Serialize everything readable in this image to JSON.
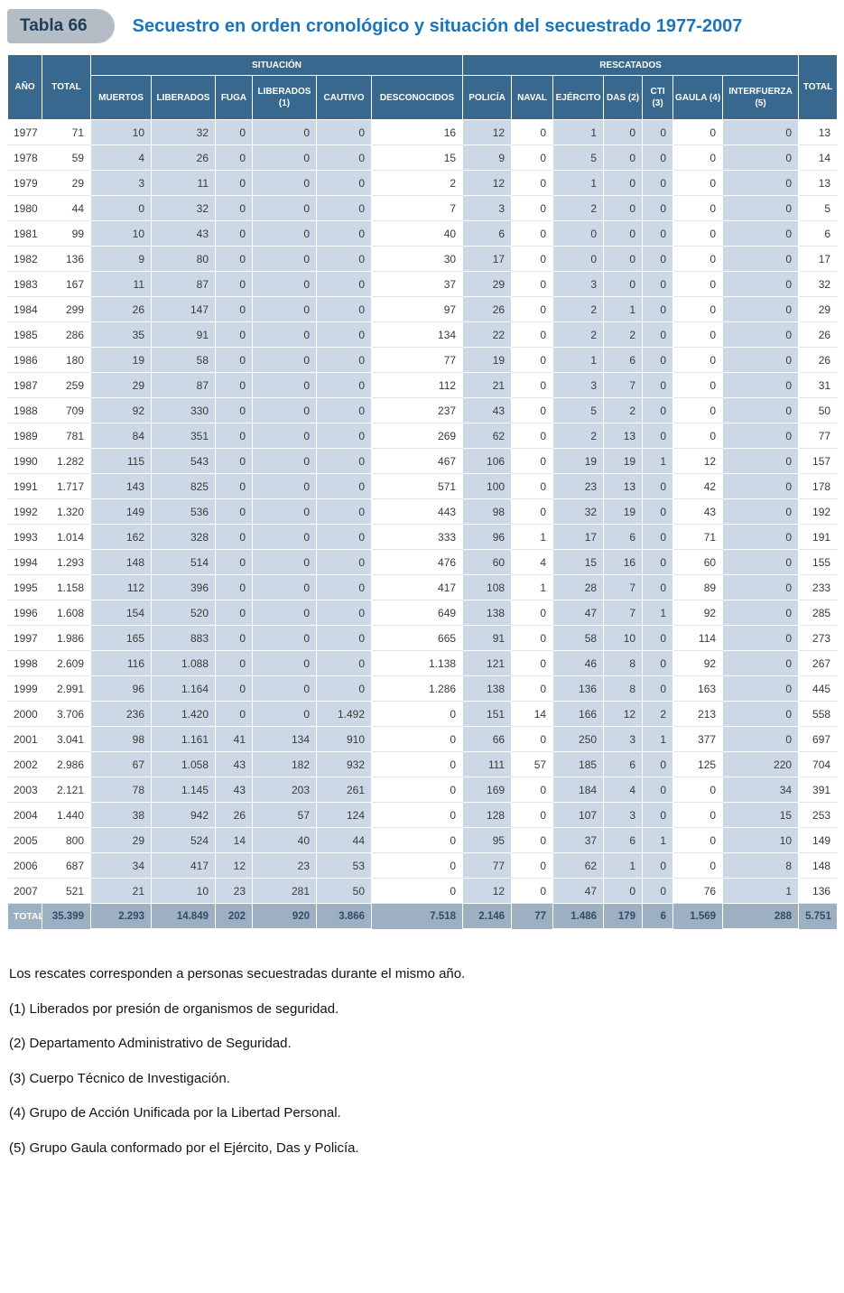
{
  "header": {
    "badge": "Tabla 66",
    "title": "Secuestro en orden cronológico y situación del secuestrado 1977-2007"
  },
  "table": {
    "group_headers": [
      "SITUACIÓN",
      "RESCATADOS"
    ],
    "columns": [
      "AÑO",
      "TOTAL",
      "MUERTOS",
      "LIBERADOS",
      "FUGA",
      "LIBERADOS (1)",
      "CAUTIVO",
      "DESCONOCIDOS",
      "POLICÍA",
      "NAVAL",
      "EJÉRCITO",
      "DAS (2)",
      "CTI (3)",
      "GAULA (4)",
      "INTERFUERZA (5)",
      "TOTAL"
    ],
    "rows": [
      [
        "1977",
        "71",
        "10",
        "32",
        "0",
        "0",
        "0",
        "16",
        "12",
        "0",
        "1",
        "0",
        "0",
        "0",
        "0",
        "13"
      ],
      [
        "1978",
        "59",
        "4",
        "26",
        "0",
        "0",
        "0",
        "15",
        "9",
        "0",
        "5",
        "0",
        "0",
        "0",
        "0",
        "14"
      ],
      [
        "1979",
        "29",
        "3",
        "11",
        "0",
        "0",
        "0",
        "2",
        "12",
        "0",
        "1",
        "0",
        "0",
        "0",
        "0",
        "13"
      ],
      [
        "1980",
        "44",
        "0",
        "32",
        "0",
        "0",
        "0",
        "7",
        "3",
        "0",
        "2",
        "0",
        "0",
        "0",
        "0",
        "5"
      ],
      [
        "1981",
        "99",
        "10",
        "43",
        "0",
        "0",
        "0",
        "40",
        "6",
        "0",
        "0",
        "0",
        "0",
        "0",
        "0",
        "6"
      ],
      [
        "1982",
        "136",
        "9",
        "80",
        "0",
        "0",
        "0",
        "30",
        "17",
        "0",
        "0",
        "0",
        "0",
        "0",
        "0",
        "17"
      ],
      [
        "1983",
        "167",
        "11",
        "87",
        "0",
        "0",
        "0",
        "37",
        "29",
        "0",
        "3",
        "0",
        "0",
        "0",
        "0",
        "32"
      ],
      [
        "1984",
        "299",
        "26",
        "147",
        "0",
        "0",
        "0",
        "97",
        "26",
        "0",
        "2",
        "1",
        "0",
        "0",
        "0",
        "29"
      ],
      [
        "1985",
        "286",
        "35",
        "91",
        "0",
        "0",
        "0",
        "134",
        "22",
        "0",
        "2",
        "2",
        "0",
        "0",
        "0",
        "26"
      ],
      [
        "1986",
        "180",
        "19",
        "58",
        "0",
        "0",
        "0",
        "77",
        "19",
        "0",
        "1",
        "6",
        "0",
        "0",
        "0",
        "26"
      ],
      [
        "1987",
        "259",
        "29",
        "87",
        "0",
        "0",
        "0",
        "112",
        "21",
        "0",
        "3",
        "7",
        "0",
        "0",
        "0",
        "31"
      ],
      [
        "1988",
        "709",
        "92",
        "330",
        "0",
        "0",
        "0",
        "237",
        "43",
        "0",
        "5",
        "2",
        "0",
        "0",
        "0",
        "50"
      ],
      [
        "1989",
        "781",
        "84",
        "351",
        "0",
        "0",
        "0",
        "269",
        "62",
        "0",
        "2",
        "13",
        "0",
        "0",
        "0",
        "77"
      ],
      [
        "1990",
        "1.282",
        "115",
        "543",
        "0",
        "0",
        "0",
        "467",
        "106",
        "0",
        "19",
        "19",
        "1",
        "12",
        "0",
        "157"
      ],
      [
        "1991",
        "1.717",
        "143",
        "825",
        "0",
        "0",
        "0",
        "571",
        "100",
        "0",
        "23",
        "13",
        "0",
        "42",
        "0",
        "178"
      ],
      [
        "1992",
        "1.320",
        "149",
        "536",
        "0",
        "0",
        "0",
        "443",
        "98",
        "0",
        "32",
        "19",
        "0",
        "43",
        "0",
        "192"
      ],
      [
        "1993",
        "1.014",
        "162",
        "328",
        "0",
        "0",
        "0",
        "333",
        "96",
        "1",
        "17",
        "6",
        "0",
        "71",
        "0",
        "191"
      ],
      [
        "1994",
        "1.293",
        "148",
        "514",
        "0",
        "0",
        "0",
        "476",
        "60",
        "4",
        "15",
        "16",
        "0",
        "60",
        "0",
        "155"
      ],
      [
        "1995",
        "1.158",
        "112",
        "396",
        "0",
        "0",
        "0",
        "417",
        "108",
        "1",
        "28",
        "7",
        "0",
        "89",
        "0",
        "233"
      ],
      [
        "1996",
        "1.608",
        "154",
        "520",
        "0",
        "0",
        "0",
        "649",
        "138",
        "0",
        "47",
        "7",
        "1",
        "92",
        "0",
        "285"
      ],
      [
        "1997",
        "1.986",
        "165",
        "883",
        "0",
        "0",
        "0",
        "665",
        "91",
        "0",
        "58",
        "10",
        "0",
        "114",
        "0",
        "273"
      ],
      [
        "1998",
        "2.609",
        "116",
        "1.088",
        "0",
        "0",
        "0",
        "1.138",
        "121",
        "0",
        "46",
        "8",
        "0",
        "92",
        "0",
        "267"
      ],
      [
        "1999",
        "2.991",
        "96",
        "1.164",
        "0",
        "0",
        "0",
        "1.286",
        "138",
        "0",
        "136",
        "8",
        "0",
        "163",
        "0",
        "445"
      ],
      [
        "2000",
        "3.706",
        "236",
        "1.420",
        "0",
        "0",
        "1.492",
        "0",
        "151",
        "14",
        "166",
        "12",
        "2",
        "213",
        "0",
        "558"
      ],
      [
        "2001",
        "3.041",
        "98",
        "1.161",
        "41",
        "134",
        "910",
        "0",
        "66",
        "0",
        "250",
        "3",
        "1",
        "377",
        "0",
        "697"
      ],
      [
        "2002",
        "2.986",
        "67",
        "1.058",
        "43",
        "182",
        "932",
        "0",
        "111",
        "57",
        "185",
        "6",
        "0",
        "125",
        "220",
        "704"
      ],
      [
        "2003",
        "2.121",
        "78",
        "1.145",
        "43",
        "203",
        "261",
        "0",
        "169",
        "0",
        "184",
        "4",
        "0",
        "0",
        "34",
        "391"
      ],
      [
        "2004",
        "1.440",
        "38",
        "942",
        "26",
        "57",
        "124",
        "0",
        "128",
        "0",
        "107",
        "3",
        "0",
        "0",
        "15",
        "253"
      ],
      [
        "2005",
        "800",
        "29",
        "524",
        "14",
        "40",
        "44",
        "0",
        "95",
        "0",
        "37",
        "6",
        "1",
        "0",
        "10",
        "149"
      ],
      [
        "2006",
        "687",
        "34",
        "417",
        "12",
        "23",
        "53",
        "0",
        "77",
        "0",
        "62",
        "1",
        "0",
        "0",
        "8",
        "148"
      ],
      [
        "2007",
        "521",
        "21",
        "10",
        "23",
        "281",
        "50",
        "0",
        "12",
        "0",
        "47",
        "0",
        "0",
        "76",
        "1",
        "136"
      ]
    ],
    "total_row": [
      "TOTAL",
      "35.399",
      "2.293",
      "14.849",
      "202",
      "920",
      "3.866",
      "7.518",
      "2.146",
      "77",
      "1.486",
      "179",
      "6",
      "1.569",
      "288",
      "5.751"
    ]
  },
  "footnotes": [
    "Los rescates corresponden a personas secuestradas durante el mismo año.",
    "(1) Liberados por presión de organismos de seguridad.",
    "(2) Departamento Administrativo de Seguridad.",
    "(3) Cuerpo Técnico de Investigación.",
    "(4) Grupo de Acción Unificada por la Libertad Personal.",
    "(5) Grupo Gaula conformado por el Ejército, Das y Policía."
  ],
  "colors": {
    "header_bg": "#39688e",
    "shaded_cell": "#ccd8e5",
    "total_row_bg": "#9db0c2",
    "title": "#1b75bc",
    "badge_bg": "#b4bdc5",
    "badge_text": "#1f3d58"
  }
}
